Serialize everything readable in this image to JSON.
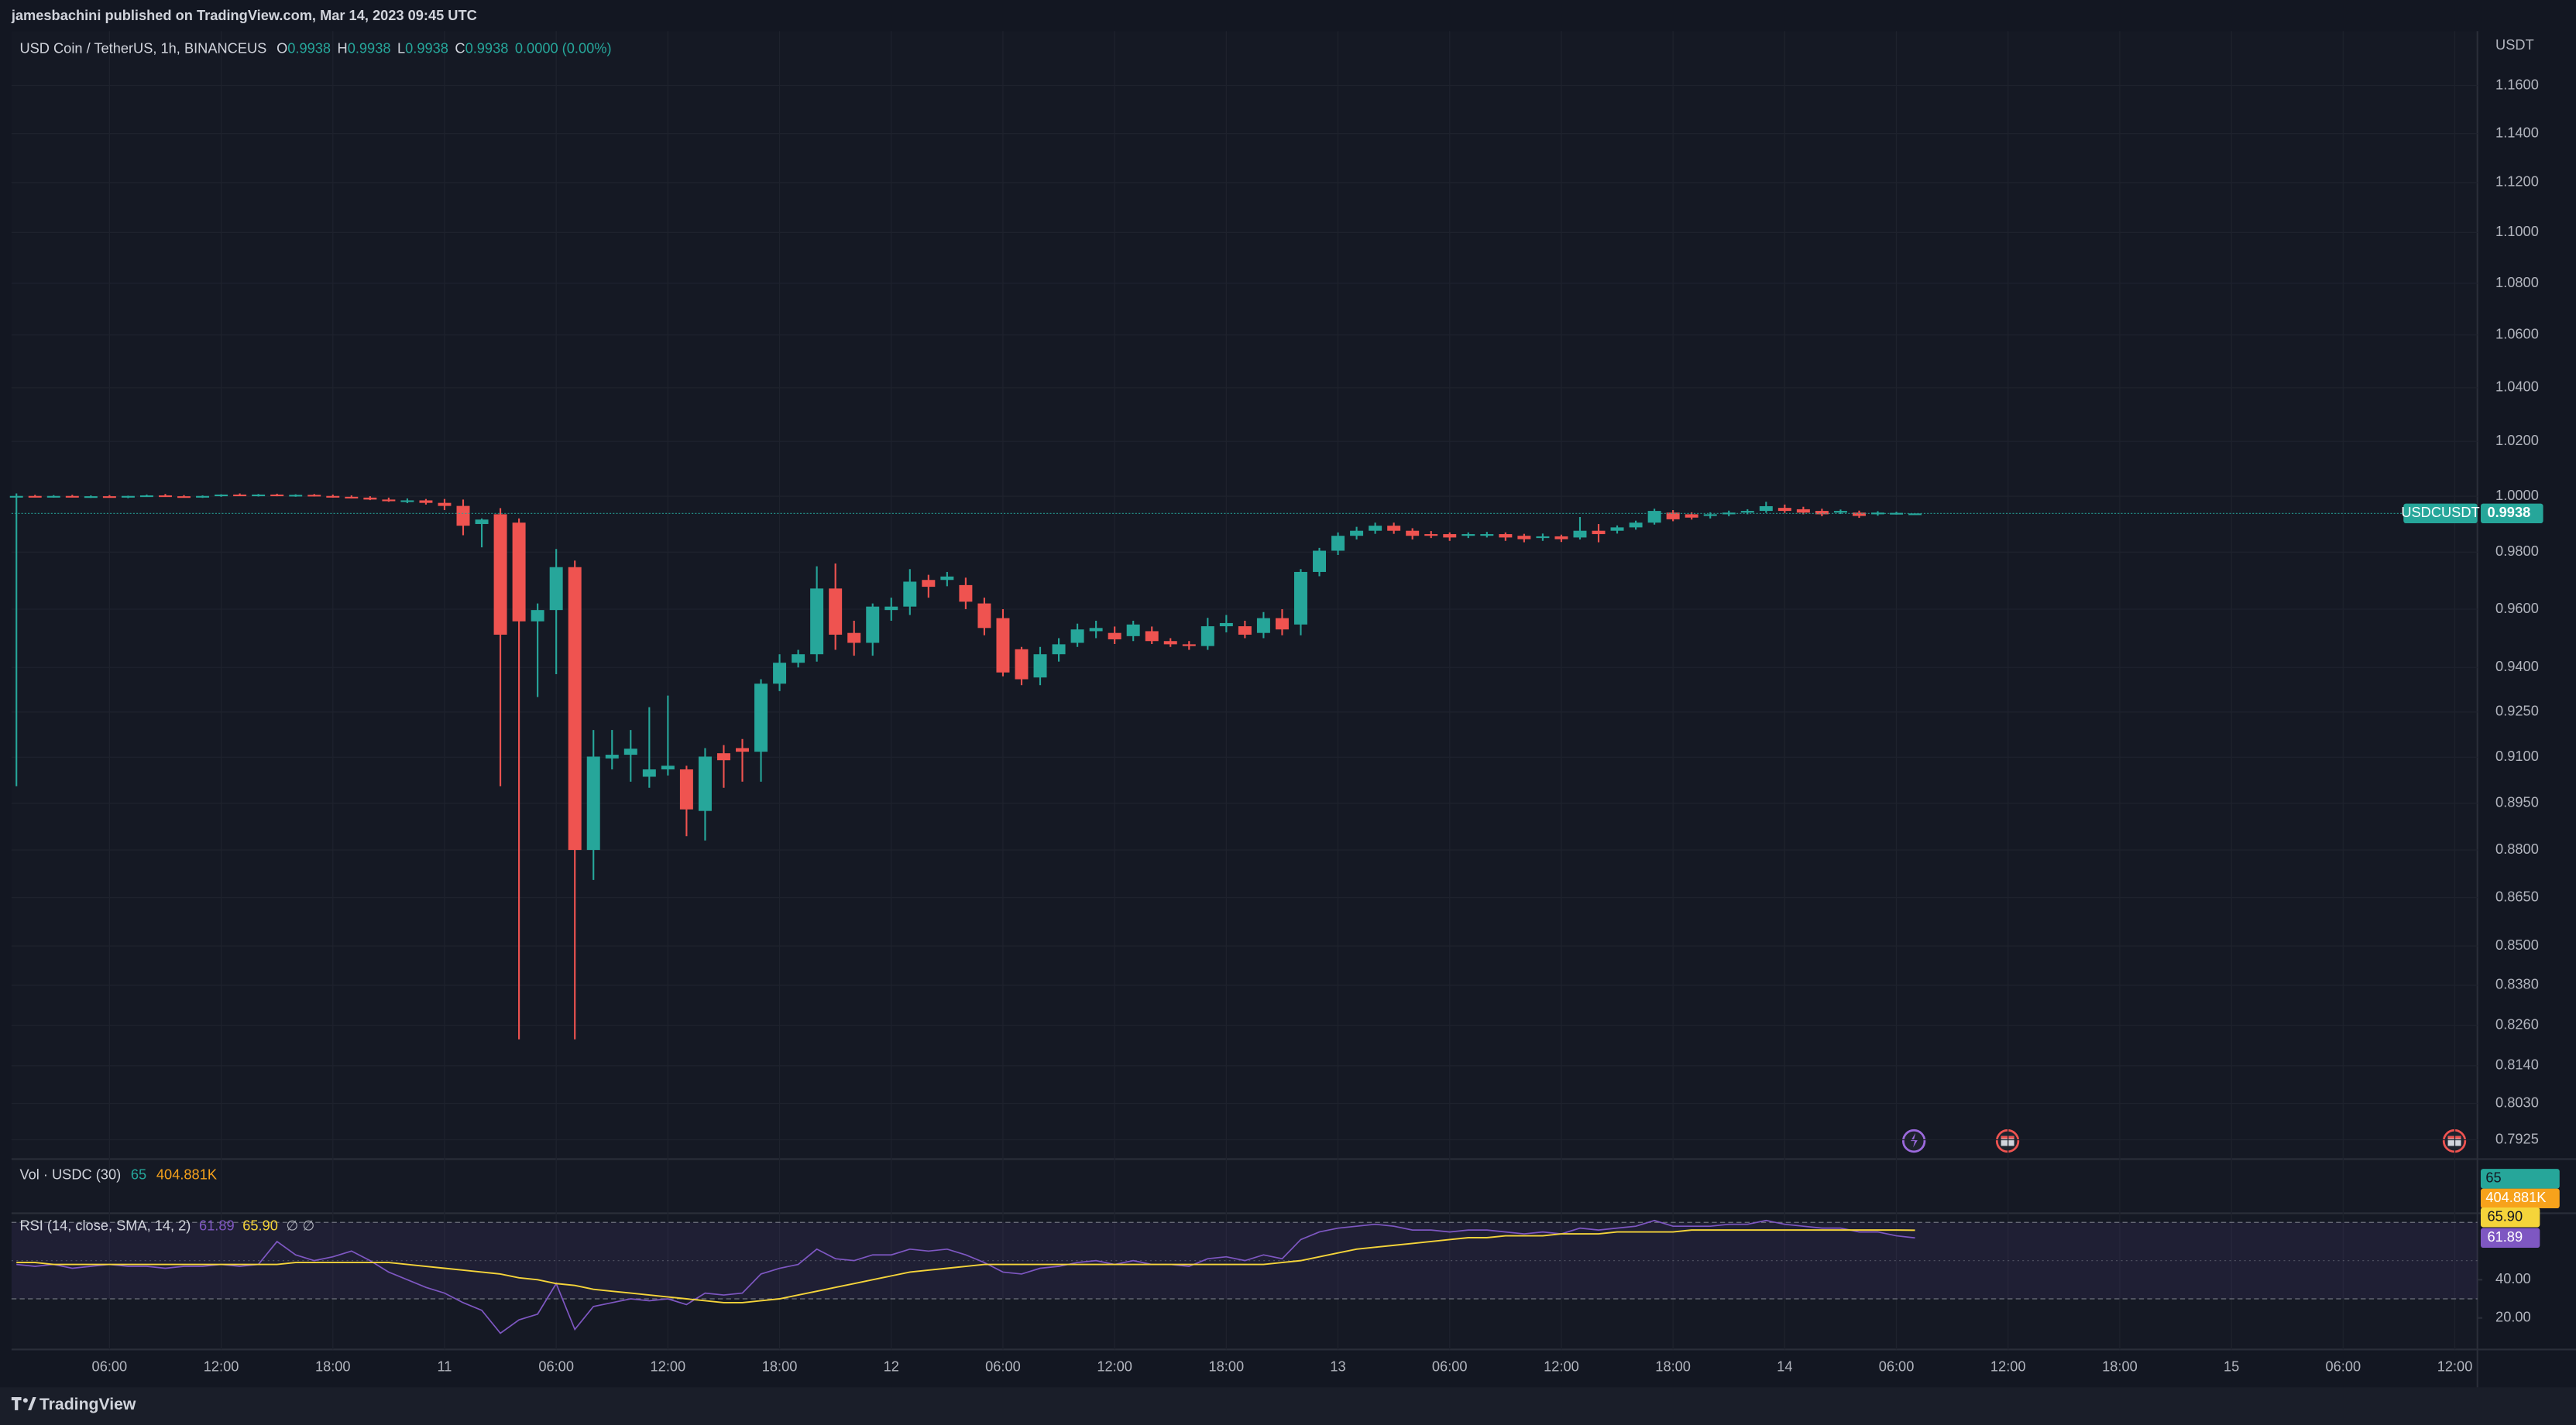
{
  "header": "jamesbachini published on TradingView.com, Mar 14, 2023 09:45 UTC",
  "footer": "TradingView",
  "chart_data": [
    {
      "type": "candlestick",
      "title": "USD Coin / TetherUS, 1h, BINANCEUS",
      "ohlc_legend": [
        {
          "key": "O",
          "value": 0.9938
        },
        {
          "key": "H",
          "value": 0.9938
        },
        {
          "key": "L",
          "value": 0.9938
        },
        {
          "key": "C",
          "value": 0.9938
        }
      ],
      "change": "0.0000 (0.00%)",
      "y_unit": "USDT",
      "log_scale": true,
      "grid": true,
      "up_color": "#26a69a",
      "down_color": "#ef5350",
      "symbol": "USDCUSDT",
      "last_price": 0.9938,
      "ylim": [
        0.787,
        1.183
      ],
      "yticks": [
        {
          "value": 1.16,
          "label": "1.1600"
        },
        {
          "value": 1.14,
          "label": "1.1400"
        },
        {
          "value": 1.12,
          "label": "1.1200"
        },
        {
          "value": 1.1,
          "label": "1.1000"
        },
        {
          "value": 1.08,
          "label": "1.0800"
        },
        {
          "value": 1.06,
          "label": "1.0600"
        },
        {
          "value": 1.04,
          "label": "1.0400"
        },
        {
          "value": 1.02,
          "label": "1.0200"
        },
        {
          "value": 1,
          "label": "1.0000"
        },
        {
          "value": 0.98,
          "label": "0.9800"
        },
        {
          "value": 0.96,
          "label": "0.9600"
        },
        {
          "value": 0.94,
          "label": "0.9400"
        },
        {
          "value": 0.925,
          "label": "0.9250"
        },
        {
          "value": 0.91,
          "label": "0.9100"
        },
        {
          "value": 0.895,
          "label": "0.8950"
        },
        {
          "value": 0.88,
          "label": "0.8800"
        },
        {
          "value": 0.865,
          "label": "0.8650"
        },
        {
          "value": 0.85,
          "label": "0.8500"
        },
        {
          "value": 0.838,
          "label": "0.8380"
        },
        {
          "value": 0.826,
          "label": "0.8260"
        },
        {
          "value": 0.814,
          "label": "0.8140"
        },
        {
          "value": 0.803,
          "label": "0.8030"
        },
        {
          "value": 0.7925,
          "label": "0.7925"
        }
      ],
      "categories": [
        null,
        null,
        null,
        null,
        null,
        "06:00",
        null,
        null,
        null,
        null,
        null,
        "12:00",
        null,
        null,
        null,
        null,
        null,
        "18:00",
        null,
        null,
        null,
        null,
        null,
        "11",
        null,
        null,
        null,
        null,
        null,
        "06:00",
        null,
        null,
        null,
        null,
        null,
        "12:00",
        null,
        null,
        null,
        null,
        null,
        "18:00",
        null,
        null,
        null,
        null,
        null,
        "12",
        null,
        null,
        null,
        null,
        null,
        "06:00",
        null,
        null,
        null,
        null,
        null,
        "12:00",
        null,
        null,
        null,
        null,
        null,
        "18:00",
        null,
        null,
        null,
        null,
        null,
        "13",
        null,
        null,
        null,
        null,
        null,
        "06:00",
        null,
        null,
        null,
        null,
        null,
        "12:00",
        null,
        null,
        null,
        null,
        null,
        "18:00",
        null,
        null,
        null,
        null,
        null,
        "14",
        null,
        null,
        null,
        null,
        null,
        "06:00",
        null,
        null,
        null,
        null,
        null,
        "12:00",
        null,
        null,
        null,
        null,
        null,
        "18:00",
        null,
        null,
        null,
        null,
        null,
        "15",
        null,
        null,
        null,
        null,
        null,
        "06:00",
        null,
        null,
        null,
        null,
        null,
        "12:00",
        null
      ],
      "open": [
        1.0,
        1.0001,
        0.9999,
        1.0001,
        0.9998,
        1.0,
        0.9997,
        1.0001,
        1.0003,
        1.0,
        0.9998,
        1.0001,
        1.0006,
        1.0003,
        1.0006,
        1.0002,
        1.0005,
        1.0001,
        0.9998,
        0.9995,
        0.9988,
        0.9983,
        0.9985,
        0.9976,
        0.9965,
        0.99,
        0.9935,
        0.9905,
        0.9558,
        0.9597,
        0.9747,
        0.88,
        0.9096,
        0.9108,
        0.9036,
        0.906,
        0.906,
        0.8925,
        0.9113,
        0.913,
        0.9118,
        0.9345,
        0.9416,
        0.9445,
        0.9672,
        0.9518,
        0.9484,
        0.9597,
        0.9609,
        0.9702,
        0.9702,
        0.9684,
        0.962,
        0.9569,
        0.9462,
        0.9366,
        0.9445,
        0.9484,
        0.9524,
        0.9518,
        0.9507,
        0.9524,
        0.949,
        0.9479,
        0.9473,
        0.9541,
        0.9541,
        0.9518,
        0.9569,
        0.9547,
        0.973,
        0.9805,
        0.9858,
        0.9876,
        0.9894,
        0.9876,
        0.9864,
        0.9864,
        0.9858,
        0.986,
        0.9864,
        0.9858,
        0.985,
        0.9856,
        0.9852,
        0.9876,
        0.9876,
        0.9888,
        0.9905,
        0.9941,
        0.9935,
        0.9929,
        0.9935,
        0.9941,
        0.9947,
        0.9958,
        0.9953,
        0.9947,
        0.9941,
        0.9941,
        0.9935,
        0.9938,
        0.9938,
        null,
        null,
        null,
        null,
        null,
        null,
        null,
        null,
        null,
        null,
        null,
        null,
        null,
        null,
        null,
        null,
        null,
        null,
        null,
        null,
        null,
        null,
        null,
        null,
        null,
        null,
        null,
        null,
        null,
        null
      ],
      "high": [
        1.001,
        1.0005,
        1.0004,
        1.0005,
        1.0003,
        1.0004,
        1.0002,
        1.0006,
        1.0008,
        1.0004,
        1.0003,
        1.0007,
        1.001,
        1.0008,
        1.0009,
        1.0007,
        1.0008,
        1.0006,
        1.0003,
        1.0,
        0.9995,
        0.9992,
        0.999,
        0.999,
        0.9988,
        0.992,
        0.9957,
        0.992,
        0.962,
        0.9811,
        0.977,
        0.919,
        0.919,
        0.919,
        0.9266,
        0.9305,
        0.9072,
        0.913,
        0.914,
        0.916,
        0.936,
        0.9445,
        0.946,
        0.975,
        0.976,
        0.956,
        0.962,
        0.964,
        0.974,
        0.972,
        0.973,
        0.971,
        0.964,
        0.96,
        0.947,
        0.947,
        0.95,
        0.955,
        0.956,
        0.954,
        0.956,
        0.954,
        0.95,
        0.949,
        0.957,
        0.958,
        0.956,
        0.959,
        0.96,
        0.974,
        0.9815,
        0.987,
        0.989,
        0.9905,
        0.9905,
        0.9885,
        0.9875,
        0.987,
        0.987,
        0.9872,
        0.987,
        0.9865,
        0.9866,
        0.9862,
        0.9925,
        0.99,
        0.9895,
        0.9912,
        0.9955,
        0.995,
        0.9942,
        0.9942,
        0.9948,
        0.9953,
        0.998,
        0.997,
        0.9962,
        0.9955,
        0.9952,
        0.9948,
        0.9946,
        0.9944,
        0.9938,
        null,
        null,
        null,
        null,
        null,
        null,
        null,
        null,
        null,
        null,
        null,
        null,
        null,
        null,
        null,
        null,
        null,
        null,
        null,
        null,
        null,
        null,
        null,
        null,
        null,
        null,
        null,
        null,
        null,
        null
      ],
      "low": [
        0.9005,
        0.9996,
        0.9995,
        0.9997,
        0.9994,
        0.9996,
        0.9993,
        0.9998,
        0.9999,
        0.9996,
        0.9994,
        0.9998,
        1.0001,
        0.9999,
        1.0,
        0.9998,
        0.9999,
        0.9995,
        0.9992,
        0.9986,
        0.998,
        0.9975,
        0.997,
        0.995,
        0.986,
        0.9817,
        0.9005,
        0.8218,
        0.93,
        0.9377,
        0.8218,
        0.8705,
        0.906,
        0.902,
        0.9,
        0.904,
        0.8844,
        0.883,
        0.9,
        0.902,
        0.902,
        0.932,
        0.94,
        0.942,
        0.946,
        0.944,
        0.944,
        0.956,
        0.958,
        0.964,
        0.968,
        0.96,
        0.951,
        0.937,
        0.934,
        0.934,
        0.942,
        0.947,
        0.95,
        0.948,
        0.949,
        0.948,
        0.947,
        0.946,
        0.946,
        0.952,
        0.95,
        0.95,
        0.951,
        0.951,
        0.9715,
        0.979,
        0.9845,
        0.9865,
        0.9865,
        0.9845,
        0.985,
        0.984,
        0.985,
        0.9852,
        0.984,
        0.9835,
        0.984,
        0.9836,
        0.9845,
        0.9835,
        0.9866,
        0.988,
        0.9898,
        0.991,
        0.9916,
        0.992,
        0.9928,
        0.9935,
        0.994,
        0.994,
        0.9935,
        0.9928,
        0.9936,
        0.9922,
        0.993,
        0.9934,
        0.9938,
        null,
        null,
        null,
        null,
        null,
        null,
        null,
        null,
        null,
        null,
        null,
        null,
        null,
        null,
        null,
        null,
        null,
        null,
        null,
        null,
        null,
        null,
        null,
        null,
        null,
        null,
        null,
        null,
        null,
        null
      ],
      "close": [
        1.0001,
        0.9999,
        1.0001,
        0.9998,
        1.0,
        0.9997,
        1.0001,
        1.0003,
        1.0,
        0.9998,
        1.0001,
        1.0006,
        1.0003,
        1.0006,
        1.0002,
        1.0005,
        1.0001,
        0.9998,
        0.9995,
        0.9988,
        0.9983,
        0.9985,
        0.9976,
        0.9965,
        0.9894,
        0.9916,
        0.9512,
        0.9558,
        0.9597,
        0.9747,
        0.88,
        0.9102,
        0.9108,
        0.9128,
        0.906,
        0.9072,
        0.893,
        0.9102,
        0.909,
        0.9118,
        0.9345,
        0.9416,
        0.9445,
        0.9672,
        0.9512,
        0.9484,
        0.9609,
        0.9609,
        0.9696,
        0.9678,
        0.9714,
        0.9626,
        0.9535,
        0.9383,
        0.936,
        0.9445,
        0.9479,
        0.953,
        0.9535,
        0.9496,
        0.9547,
        0.949,
        0.9479,
        0.9473,
        0.9541,
        0.9552,
        0.9512,
        0.9569,
        0.953,
        0.973,
        0.9805,
        0.9858,
        0.9876,
        0.9894,
        0.9876,
        0.9858,
        0.9858,
        0.9852,
        0.9864,
        0.9864,
        0.9852,
        0.9846,
        0.9856,
        0.9846,
        0.9876,
        0.9864,
        0.9888,
        0.9905,
        0.9947,
        0.9917,
        0.9923,
        0.9935,
        0.9941,
        0.9947,
        0.9964,
        0.9947,
        0.9941,
        0.9935,
        0.9947,
        0.9929,
        0.9941,
        0.994,
        0.9938,
        null,
        null,
        null,
        null,
        null,
        null,
        null,
        null,
        null,
        null,
        null,
        null,
        null,
        null,
        null,
        null,
        null,
        null,
        null,
        null,
        null,
        null,
        null,
        null,
        null,
        null,
        null,
        null,
        null,
        null
      ]
    },
    {
      "type": "volume",
      "title": "Vol · USDC (30)",
      "legend": [
        {
          "value": 65,
          "color": "#26a69a"
        },
        {
          "value": 404881,
          "label": "404.881K",
          "color": "#f7a21b"
        }
      ]
    },
    {
      "type": "rsi",
      "title": "RSI (14, close, SMA, 14, 2)",
      "suffix": "∅ ∅",
      "ylim": [
        3.5,
        74.8
      ],
      "yticks": [
        {
          "value": 40,
          "label": "40.00"
        },
        {
          "value": 20,
          "label": "20.00"
        }
      ],
      "bands": [
        70,
        50,
        30
      ],
      "band_color": "#7e57c2",
      "series": [
        {
          "color": "#7e57c2",
          "values": [
            48,
            47,
            48,
            46,
            47,
            48,
            47,
            47,
            46,
            47,
            47,
            48,
            47,
            48,
            60,
            53,
            50,
            52,
            55,
            50,
            44,
            40,
            36,
            33,
            28,
            24,
            12,
            19,
            22,
            38,
            14,
            26,
            28,
            30,
            29,
            30,
            27,
            33,
            32,
            33,
            43,
            46,
            48,
            56,
            51,
            50,
            53,
            53,
            56,
            55,
            56,
            53,
            49,
            44,
            43,
            46,
            47,
            49,
            50,
            48,
            50,
            48,
            48,
            47,
            51,
            52,
            50,
            53,
            51,
            61,
            65,
            67,
            68,
            69,
            68,
            66,
            66,
            65,
            66,
            66,
            65,
            64,
            65,
            64,
            67,
            66,
            67,
            68,
            71,
            68,
            68,
            68,
            69,
            69,
            71,
            69,
            68,
            67,
            67,
            65,
            65,
            63,
            61.89,
            null,
            null,
            null,
            null,
            null,
            null,
            null,
            null,
            null,
            null,
            null,
            null,
            null,
            null,
            null,
            null,
            null,
            null,
            null,
            null,
            null,
            null,
            null,
            null,
            null,
            null,
            null,
            null,
            null,
            null
          ]
        },
        {
          "color": "#f5d43a",
          "last_label": "65.90",
          "values": [
            49,
            49,
            48,
            48,
            48,
            48,
            48,
            48,
            48,
            48,
            48,
            48,
            48,
            48,
            48,
            49,
            49,
            49,
            49,
            49,
            49,
            48,
            47,
            46,
            45,
            44,
            43,
            41,
            40,
            38,
            37,
            35,
            34,
            33,
            32,
            31,
            30,
            29,
            28,
            28,
            29,
            30,
            32,
            34,
            36,
            38,
            40,
            42,
            44,
            45,
            46,
            47,
            48,
            48,
            48,
            48,
            48,
            48,
            48,
            48,
            48,
            48,
            48,
            48,
            48,
            48,
            48,
            48,
            49,
            50,
            52,
            54,
            56,
            57,
            58,
            59,
            60,
            61,
            62,
            62,
            63,
            63,
            63,
            64,
            64,
            64,
            65,
            65,
            65,
            65,
            66,
            66,
            66,
            66,
            66,
            66,
            66,
            66,
            66,
            66,
            66,
            66,
            65.9,
            null,
            null,
            null,
            null,
            null,
            null,
            null,
            null,
            null,
            null,
            null,
            null,
            null,
            null,
            null,
            null,
            null,
            null,
            null,
            null,
            null,
            null,
            null,
            null,
            null,
            null,
            null,
            null,
            null,
            null
          ]
        }
      ]
    }
  ]
}
